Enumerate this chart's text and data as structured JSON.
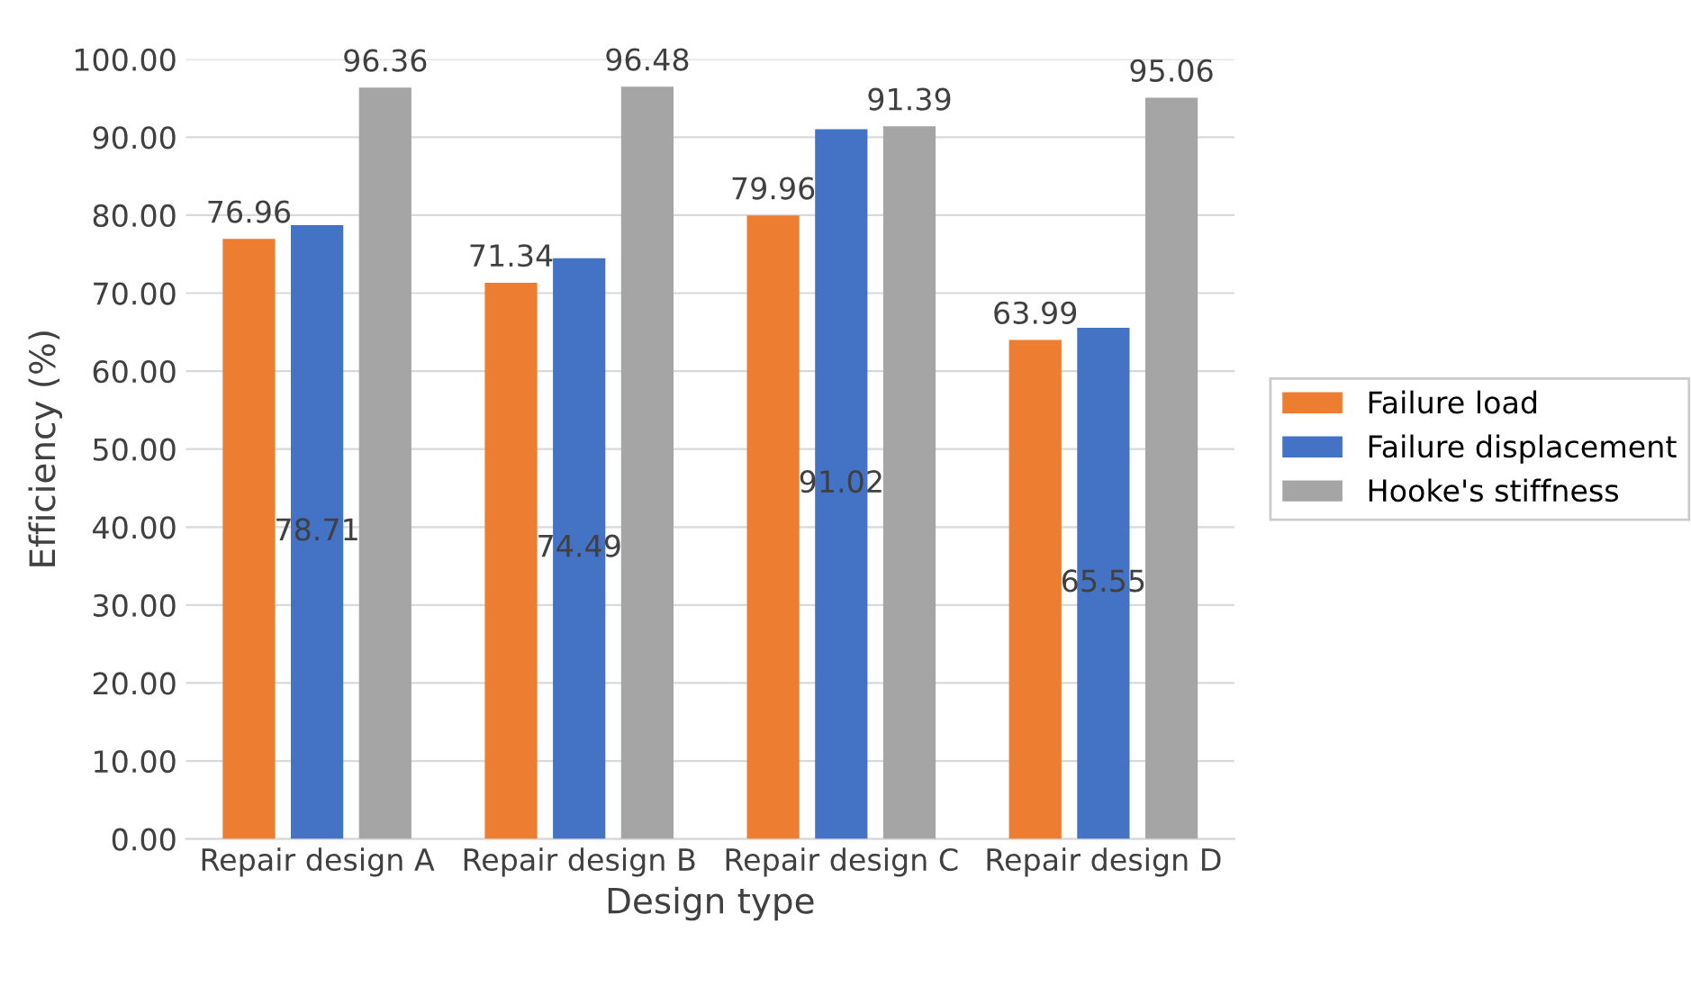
{
  "chart_data": {
    "type": "bar",
    "xlabel": "Design type",
    "ylabel": "Efficiency (%)",
    "categories": [
      "Repair design A",
      "Repair design B",
      "Repair design C",
      "Repair design D"
    ],
    "series": [
      {
        "name": "Failure load",
        "color": "#ed7d31",
        "values": [
          76.96,
          71.34,
          79.96,
          63.99
        ]
      },
      {
        "name": "Failure displacement",
        "color": "#4472c4",
        "values": [
          78.71,
          74.49,
          91.02,
          65.55
        ]
      },
      {
        "name": "Hooke's stiffness",
        "color": "#a5a5a5",
        "values": [
          96.36,
          96.48,
          91.39,
          95.06
        ]
      }
    ],
    "ylim": [
      0,
      100
    ],
    "yticks": [
      {
        "value": 0,
        "label": "0.00"
      },
      {
        "value": 10,
        "label": "10.00"
      },
      {
        "value": 20,
        "label": "20.00"
      },
      {
        "value": 30,
        "label": "30.00"
      },
      {
        "value": 40,
        "label": "40.00"
      },
      {
        "value": 50,
        "label": "50.00"
      },
      {
        "value": 60,
        "label": "60.00"
      },
      {
        "value": 70,
        "label": "70.00"
      },
      {
        "value": 80,
        "label": "80.00"
      },
      {
        "value": 90,
        "label": "90.00"
      },
      {
        "value": 100,
        "label": "100.00"
      }
    ],
    "grid": "y",
    "legend": "right",
    "data_labels": true
  }
}
